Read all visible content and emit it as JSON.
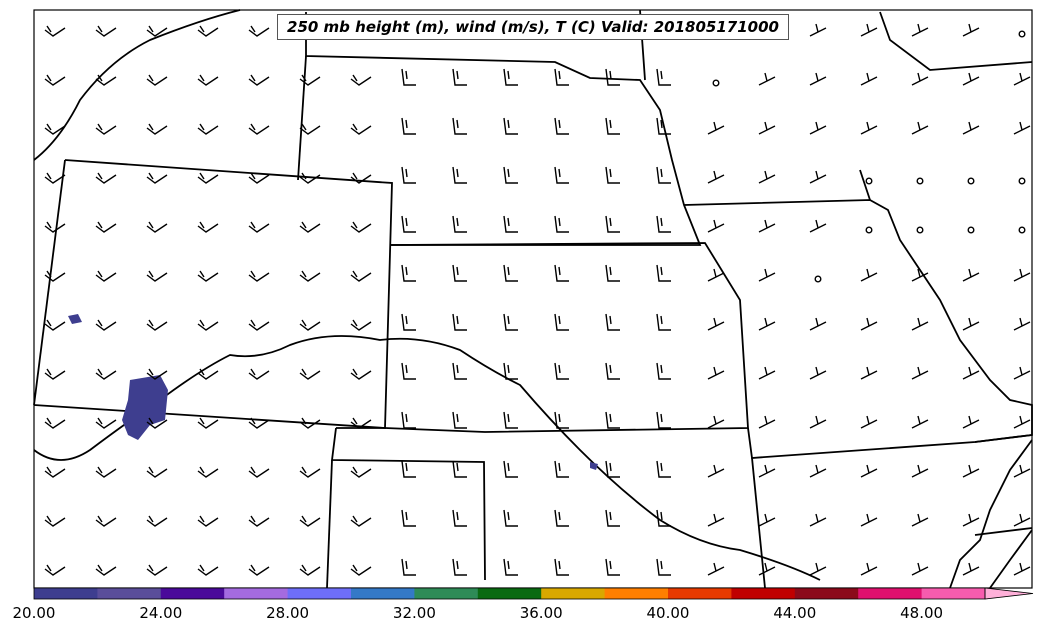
{
  "title": "250 mb height (m), wind (m/s), T (C) Valid: 201805171000",
  "colorbar": {
    "tick_labels": [
      "20.00",
      "24.00",
      "28.00",
      "32.00",
      "36.00",
      "40.00",
      "44.00",
      "48.00"
    ],
    "colors": [
      "#3e3e8f",
      "#5a4e9a",
      "#4a0a9a",
      "#a46be0",
      "#6e6ef8",
      "#3479c7",
      "#2e8b57",
      "#0a6a12",
      "#d9a800",
      "#ff7f00",
      "#e73a00",
      "#c00000",
      "#8b0a1a",
      "#e0106e",
      "#f75cae",
      "#ffb0d9"
    ]
  },
  "map": {
    "wind_barb_color": "#000000",
    "temperature_patch_color": "#3e3e8f",
    "calm_marker": "circle"
  }
}
